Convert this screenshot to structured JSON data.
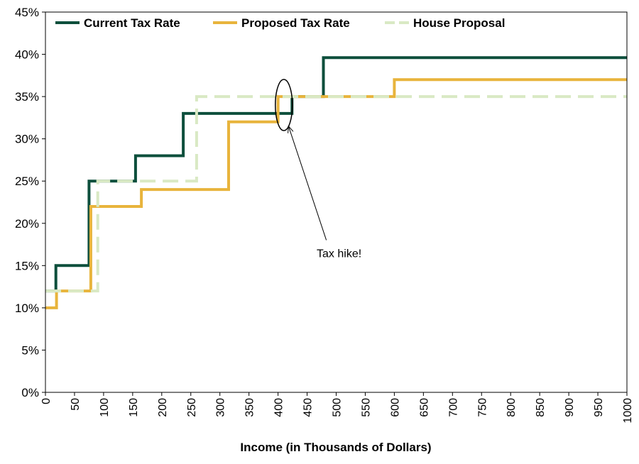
{
  "chart_data": {
    "type": "line",
    "step": true,
    "xlabel": "Income (in Thousands of Dollars)",
    "ylabel": "",
    "xlim": [
      0,
      1000
    ],
    "ylim": [
      0,
      45
    ],
    "x_ticks": [
      "0",
      "50",
      "100",
      "150",
      "200",
      "250",
      "300",
      "350",
      "400",
      "450",
      "500",
      "550",
      "600",
      "650",
      "700",
      "750",
      "800",
      "850",
      "900",
      "950",
      "1000"
    ],
    "y_ticks": [
      "0%",
      "5%",
      "10%",
      "15%",
      "20%",
      "25%",
      "30%",
      "35%",
      "40%",
      "45%"
    ],
    "grid": false,
    "legend_position": "top",
    "series": [
      {
        "name": "Current Tax Rate",
        "color": "#0d4f3c",
        "dashed": false,
        "points": [
          [
            0,
            12
          ],
          [
            18,
            12
          ],
          [
            18,
            15
          ],
          [
            75,
            15
          ],
          [
            75,
            25
          ],
          [
            155,
            25
          ],
          [
            155,
            28
          ],
          [
            237,
            28
          ],
          [
            237,
            33
          ],
          [
            424,
            33
          ],
          [
            424,
            35
          ],
          [
            478,
            35
          ],
          [
            478,
            39.6
          ],
          [
            1000,
            39.6
          ]
        ]
      },
      {
        "name": "Proposed Tax Rate",
        "color": "#e8b43c",
        "dashed": false,
        "points": [
          [
            0,
            10
          ],
          [
            19,
            10
          ],
          [
            19,
            12
          ],
          [
            78,
            12
          ],
          [
            78,
            22
          ],
          [
            165,
            22
          ],
          [
            165,
            24
          ],
          [
            315,
            24
          ],
          [
            315,
            32
          ],
          [
            400,
            32
          ],
          [
            400,
            35
          ],
          [
            600,
            35
          ],
          [
            600,
            37
          ],
          [
            1000,
            37
          ]
        ]
      },
      {
        "name": "House Proposal",
        "color": "#d9e9c4",
        "dashed": true,
        "points": [
          [
            0,
            12
          ],
          [
            90,
            12
          ],
          [
            90,
            25
          ],
          [
            260,
            25
          ],
          [
            260,
            35
          ],
          [
            1000,
            35
          ]
        ]
      }
    ],
    "annotation": {
      "text": "Tax hike!",
      "ellipse_center": [
        410,
        34
      ],
      "arrow_tip": [
        418,
        31.5
      ],
      "text_anchor": [
        505,
        16.5
      ]
    }
  }
}
